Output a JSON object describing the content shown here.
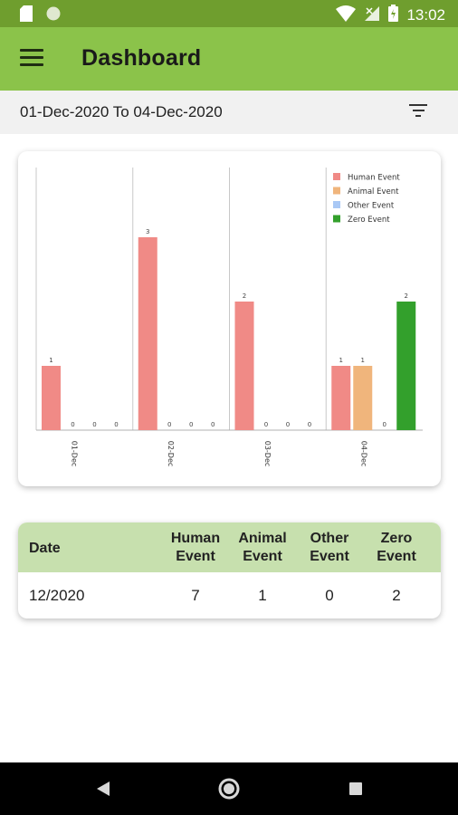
{
  "status_bar": {
    "time": "13:02"
  },
  "app_bar": {
    "title": "Dashboard"
  },
  "date_bar": {
    "range": "01-Dec-2020 To 04-Dec-2020"
  },
  "chart_data": {
    "type": "bar",
    "categories": [
      "01-Dec",
      "02-Dec",
      "03-Dec",
      "04-Dec"
    ],
    "series": [
      {
        "name": "Human Event",
        "color": "#f08a86",
        "values": [
          1,
          3,
          2,
          1
        ]
      },
      {
        "name": "Animal Event",
        "color": "#f0b57c",
        "values": [
          0,
          0,
          0,
          1
        ]
      },
      {
        "name": "Other Event",
        "color": "#a9c8f5",
        "values": [
          0,
          0,
          0,
          0
        ]
      },
      {
        "name": "Zero Event",
        "color": "#33a02c",
        "values": [
          0,
          0,
          0,
          2
        ]
      }
    ],
    "ylim": [
      0,
      4
    ],
    "legend_position": "top-right",
    "grid": false,
    "data_labels": true
  },
  "summary_table": {
    "headers": {
      "date": "Date",
      "human": [
        "Human",
        "Event"
      ],
      "animal": [
        "Animal",
        "Event"
      ],
      "other": [
        "Other",
        "Event"
      ],
      "zero": [
        "Zero",
        "Event"
      ]
    },
    "rows": [
      {
        "date": "12/2020",
        "human": "7",
        "animal": "1",
        "other": "0",
        "zero": "2"
      }
    ]
  }
}
